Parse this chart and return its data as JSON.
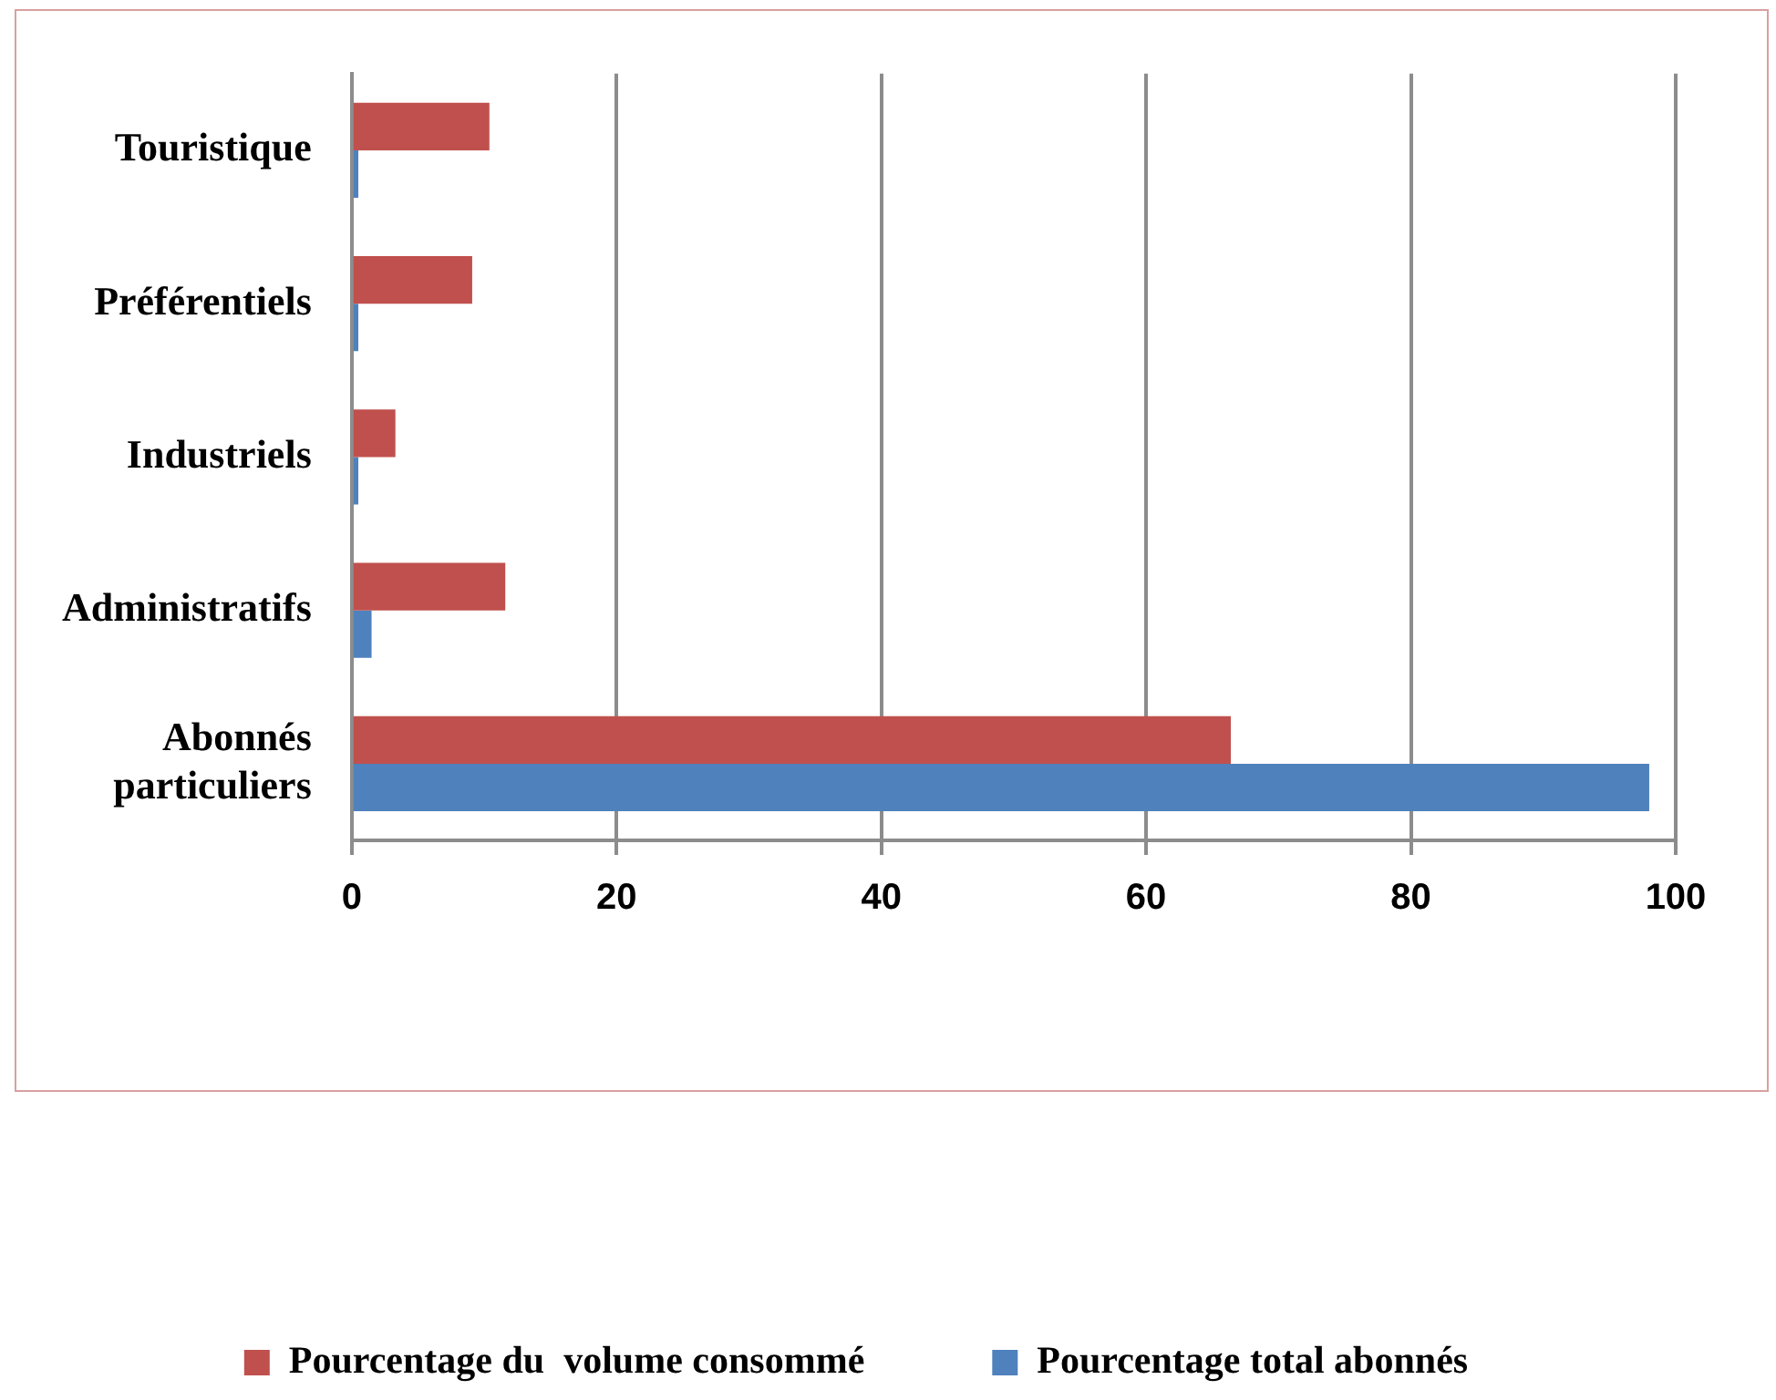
{
  "chart_data": {
    "type": "bar",
    "orientation": "horizontal",
    "categories": [
      "Touristique",
      "Préférentiels",
      "Industriels",
      "Administratifs",
      "Abonnés particuliers"
    ],
    "series": [
      {
        "name": "Pourcentage du  volume consommé",
        "color": "#c0504d",
        "values": [
          10.4,
          9.1,
          3.3,
          11.6,
          66.4
        ]
      },
      {
        "name": "Pourcentage total abonnés",
        "color": "#4f81bd",
        "values": [
          0.5,
          0.5,
          0.5,
          1.5,
          98
        ]
      }
    ],
    "xlim": [
      0,
      100
    ],
    "xticks": [
      0,
      20,
      40,
      60,
      80,
      100
    ],
    "grid": "x",
    "legend": "bottom"
  }
}
